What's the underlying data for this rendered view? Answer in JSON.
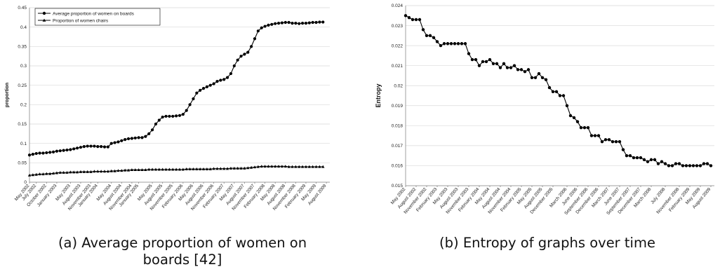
{
  "captions": {
    "a_line1": "(a) Average proportion of women on",
    "a_line2": "boards [42]",
    "b": "(b) Entropy of graphs over time"
  },
  "chart_data": [
    {
      "type": "line",
      "ylabel": "proportion",
      "ylim": [
        0,
        0.45
      ],
      "yticks": [
        "0",
        "0.05",
        "0.1",
        "0.15",
        "0.2",
        "0.25",
        "0.3",
        "0.35",
        "0.4",
        "0.45"
      ],
      "xlim": [
        0,
        88
      ],
      "xticks": [
        {
          "x": 0,
          "label": "May 2002"
        },
        {
          "x": 2,
          "label": "July 2002"
        },
        {
          "x": 5,
          "label": "October 2002"
        },
        {
          "x": 8,
          "label": "January 2003"
        },
        {
          "x": 12,
          "label": "May 2003"
        },
        {
          "x": 15,
          "label": "August 2003"
        },
        {
          "x": 18,
          "label": "November 2003"
        },
        {
          "x": 20,
          "label": "January 2004"
        },
        {
          "x": 24,
          "label": "May 2004"
        },
        {
          "x": 27,
          "label": "August 2004"
        },
        {
          "x": 30,
          "label": "November 2004"
        },
        {
          "x": 32,
          "label": "January 2005"
        },
        {
          "x": 36,
          "label": "May 2005"
        },
        {
          "x": 39,
          "label": "August 2005"
        },
        {
          "x": 42,
          "label": "November 2005"
        },
        {
          "x": 45,
          "label": "February 2006"
        },
        {
          "x": 48,
          "label": "May 2006"
        },
        {
          "x": 51,
          "label": "August 2006"
        },
        {
          "x": 54,
          "label": "November 2006"
        },
        {
          "x": 57,
          "label": "February 2007"
        },
        {
          "x": 60,
          "label": "May 2007"
        },
        {
          "x": 63,
          "label": "August 2007"
        },
        {
          "x": 66,
          "label": "November 2007"
        },
        {
          "x": 69,
          "label": "February 2008"
        },
        {
          "x": 72,
          "label": "May 2008"
        },
        {
          "x": 75,
          "label": "August 2008"
        },
        {
          "x": 78,
          "label": "November 2008"
        },
        {
          "x": 81,
          "label": "February 2009"
        },
        {
          "x": 84,
          "label": "May 2009"
        },
        {
          "x": 87,
          "label": "August 2009"
        }
      ],
      "legend_position": "top-left",
      "series": [
        {
          "name": "Average proportion of women on boards",
          "marker": "circle",
          "values": [
            0.07,
            0.072,
            0.074,
            0.075,
            0.075,
            0.076,
            0.077,
            0.078,
            0.08,
            0.081,
            0.082,
            0.083,
            0.084,
            0.086,
            0.088,
            0.09,
            0.092,
            0.093,
            0.093,
            0.093,
            0.092,
            0.092,
            0.091,
            0.091,
            0.1,
            0.102,
            0.104,
            0.107,
            0.11,
            0.112,
            0.113,
            0.114,
            0.115,
            0.115,
            0.118,
            0.125,
            0.135,
            0.15,
            0.16,
            0.168,
            0.17,
            0.17,
            0.17,
            0.171,
            0.172,
            0.175,
            0.185,
            0.2,
            0.215,
            0.23,
            0.237,
            0.242,
            0.246,
            0.25,
            0.254,
            0.26,
            0.263,
            0.265,
            0.27,
            0.28,
            0.3,
            0.315,
            0.325,
            0.33,
            0.335,
            0.35,
            0.37,
            0.39,
            0.398,
            0.402,
            0.405,
            0.407,
            0.409,
            0.41,
            0.411,
            0.412,
            0.412,
            0.41,
            0.41,
            0.409,
            0.41,
            0.41,
            0.411,
            0.412,
            0.412,
            0.413,
            0.413
          ]
        },
        {
          "name": "Proportion of women chairs",
          "marker": "triangle",
          "values": [
            0.018,
            0.019,
            0.02,
            0.021,
            0.021,
            0.022,
            0.022,
            0.023,
            0.024,
            0.025,
            0.025,
            0.025,
            0.026,
            0.026,
            0.026,
            0.027,
            0.027,
            0.027,
            0.027,
            0.028,
            0.028,
            0.028,
            0.028,
            0.028,
            0.029,
            0.029,
            0.03,
            0.03,
            0.031,
            0.031,
            0.032,
            0.032,
            0.032,
            0.032,
            0.032,
            0.033,
            0.033,
            0.033,
            0.033,
            0.033,
            0.033,
            0.033,
            0.033,
            0.033,
            0.033,
            0.033,
            0.034,
            0.034,
            0.034,
            0.034,
            0.034,
            0.034,
            0.034,
            0.034,
            0.035,
            0.035,
            0.035,
            0.035,
            0.035,
            0.036,
            0.036,
            0.036,
            0.036,
            0.036,
            0.037,
            0.038,
            0.039,
            0.04,
            0.041,
            0.041,
            0.041,
            0.041,
            0.041,
            0.041,
            0.041,
            0.041,
            0.04,
            0.04,
            0.04,
            0.04,
            0.04,
            0.04,
            0.04,
            0.04,
            0.04,
            0.04,
            0.04
          ]
        }
      ]
    },
    {
      "type": "line",
      "ylabel": "Entropy",
      "ylim": [
        0.015,
        0.024
      ],
      "yticks": [
        "0.015",
        "0.016",
        "0.017",
        "0.018",
        "0.019",
        "0.02",
        "0.021",
        "0.022",
        "0.023",
        "0.024"
      ],
      "xlim": [
        0,
        88
      ],
      "xticks": [
        {
          "x": 0,
          "label": "May 2002"
        },
        {
          "x": 3,
          "label": "August 2002"
        },
        {
          "x": 6,
          "label": "November 2002"
        },
        {
          "x": 9,
          "label": "February 2003"
        },
        {
          "x": 12,
          "label": "May 2003"
        },
        {
          "x": 15,
          "label": "August 2003"
        },
        {
          "x": 18,
          "label": "November 2003"
        },
        {
          "x": 21,
          "label": "February 2004"
        },
        {
          "x": 24,
          "label": "May 2004"
        },
        {
          "x": 27,
          "label": "August 2004"
        },
        {
          "x": 30,
          "label": "November 2004"
        },
        {
          "x": 33,
          "label": "February 2005"
        },
        {
          "x": 36,
          "label": "May 2005"
        },
        {
          "x": 39,
          "label": "August 2005"
        },
        {
          "x": 42,
          "label": "December 2005"
        },
        {
          "x": 46,
          "label": "March 2006"
        },
        {
          "x": 49,
          "label": "June 2006"
        },
        {
          "x": 52,
          "label": "September 2006"
        },
        {
          "x": 55,
          "label": "December 2006"
        },
        {
          "x": 58,
          "label": "March 2007"
        },
        {
          "x": 61,
          "label": "June 2007"
        },
        {
          "x": 64,
          "label": "September 2007"
        },
        {
          "x": 67,
          "label": "December 2007"
        },
        {
          "x": 70,
          "label": "March 2008"
        },
        {
          "x": 74,
          "label": "July 2008"
        },
        {
          "x": 78,
          "label": "November 2008"
        },
        {
          "x": 81,
          "label": "February 2009"
        },
        {
          "x": 84,
          "label": "May 2009"
        },
        {
          "x": 87,
          "label": "August 2009"
        }
      ],
      "series": [
        {
          "marker": "circle",
          "values": [
            0.0235,
            0.0234,
            0.0233,
            0.0233,
            0.0233,
            0.0228,
            0.0225,
            0.0225,
            0.0224,
            0.0222,
            0.022,
            0.0221,
            0.0221,
            0.0221,
            0.0221,
            0.0221,
            0.0221,
            0.0221,
            0.0216,
            0.0213,
            0.0213,
            0.021,
            0.0212,
            0.0212,
            0.0213,
            0.0211,
            0.0211,
            0.0209,
            0.0211,
            0.0209,
            0.0209,
            0.021,
            0.0208,
            0.0208,
            0.0207,
            0.0208,
            0.0204,
            0.0204,
            0.0206,
            0.0204,
            0.0203,
            0.0199,
            0.0197,
            0.0197,
            0.0195,
            0.0195,
            0.019,
            0.0185,
            0.0184,
            0.0182,
            0.0179,
            0.0179,
            0.0179,
            0.0175,
            0.0175,
            0.0175,
            0.0172,
            0.0173,
            0.0173,
            0.0172,
            0.0172,
            0.0172,
            0.0168,
            0.0165,
            0.0165,
            0.0164,
            0.0164,
            0.0164,
            0.0163,
            0.0162,
            0.0163,
            0.0163,
            0.0161,
            0.0162,
            0.0161,
            0.016,
            0.016,
            0.0161,
            0.0161,
            0.016,
            0.016,
            0.016,
            0.016,
            0.016,
            0.016,
            0.0161,
            0.0161,
            0.016
          ]
        }
      ]
    }
  ]
}
